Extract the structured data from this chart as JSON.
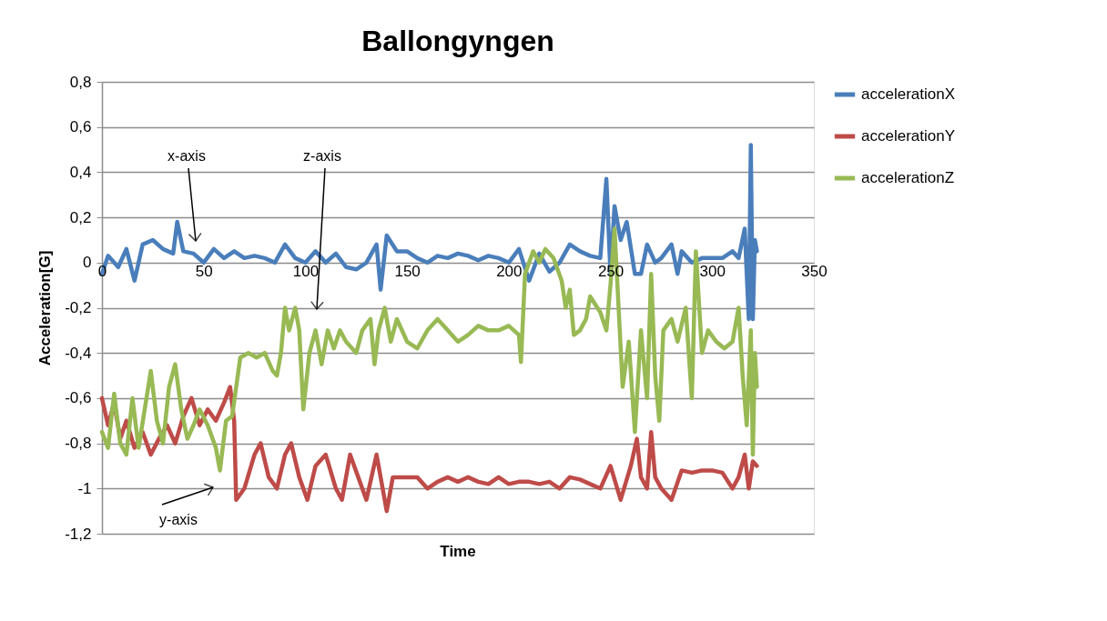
{
  "chart_data": {
    "type": "line",
    "title": "Ballongyngen",
    "xlabel": "Time",
    "ylabel": "Acceleration[G]",
    "xlim": [
      0,
      350
    ],
    "xticks": [
      0,
      50,
      100,
      150,
      200,
      250,
      300,
      350
    ],
    "ylim": [
      -1.2,
      0.8
    ],
    "yticks": [
      {
        "value": -1.2,
        "label": "-1,2"
      },
      {
        "value": -1,
        "label": "-1"
      },
      {
        "value": -0.8,
        "label": "-0,8"
      },
      {
        "value": -0.6,
        "label": "-0,6"
      },
      {
        "value": -0.4,
        "label": "-0,4"
      },
      {
        "value": -0.2,
        "label": "-0,2"
      },
      {
        "value": 0,
        "label": "0"
      },
      {
        "value": 0.2,
        "label": "0,2"
      },
      {
        "value": 0.4,
        "label": "0,4"
      },
      {
        "value": 0.6,
        "label": "0,6"
      },
      {
        "value": 0.8,
        "label": "0,8"
      }
    ],
    "grid": "y",
    "legend": "right",
    "marker": "none",
    "line_style": "solid",
    "annotations": [
      "x-axis",
      "z-axis",
      "y-axis"
    ],
    "series": [
      {
        "name": "accelerationX",
        "color": "#4a7ebb",
        "x": [
          0,
          3,
          8,
          12,
          16,
          20,
          25,
          30,
          35,
          37,
          40,
          45,
          50,
          55,
          60,
          65,
          70,
          75,
          80,
          85,
          90,
          95,
          100,
          105,
          110,
          115,
          120,
          125,
          130,
          135,
          137,
          140,
          145,
          150,
          155,
          160,
          165,
          170,
          175,
          180,
          185,
          190,
          195,
          200,
          205,
          210,
          215,
          220,
          225,
          230,
          235,
          240,
          245,
          248,
          250,
          252,
          255,
          258,
          262,
          265,
          268,
          272,
          275,
          280,
          283,
          285,
          290,
          295,
          300,
          305,
          310,
          313,
          316,
          318,
          319,
          320,
          321,
          322
        ],
        "values": [
          -0.05,
          0.03,
          -0.02,
          0.06,
          -0.08,
          0.08,
          0.1,
          0.06,
          0.04,
          0.18,
          0.05,
          0.04,
          0.0,
          0.06,
          0.02,
          0.05,
          0.02,
          0.03,
          0.02,
          0.0,
          0.08,
          0.02,
          0.0,
          0.05,
          0.0,
          0.04,
          -0.02,
          -0.03,
          0.0,
          0.08,
          -0.12,
          0.12,
          0.05,
          0.05,
          0.02,
          0.0,
          0.03,
          0.02,
          0.04,
          0.03,
          0.01,
          0.03,
          0.02,
          0.0,
          0.06,
          -0.08,
          0.04,
          -0.04,
          0.0,
          0.08,
          0.05,
          0.03,
          0.02,
          0.37,
          -0.05,
          0.25,
          0.1,
          0.18,
          -0.05,
          -0.05,
          0.08,
          0.0,
          0.02,
          0.08,
          -0.05,
          0.05,
          0.0,
          0.02,
          0.02,
          0.02,
          0.05,
          0.02,
          0.15,
          -0.25,
          0.52,
          -0.25,
          0.1,
          0.05
        ]
      },
      {
        "name": "accelerationY",
        "color": "#be4b48",
        "x": [
          0,
          3,
          6,
          9,
          12,
          16,
          20,
          24,
          28,
          32,
          36,
          40,
          44,
          48,
          52,
          56,
          60,
          63,
          65,
          66,
          70,
          75,
          78,
          82,
          86,
          90,
          93,
          97,
          101,
          105,
          110,
          115,
          118,
          122,
          126,
          130,
          135,
          140,
          143,
          148,
          155,
          160,
          165,
          170,
          175,
          180,
          185,
          190,
          195,
          200,
          205,
          210,
          215,
          220,
          225,
          230,
          235,
          240,
          245,
          250,
          255,
          260,
          263,
          265,
          268,
          270,
          272,
          275,
          280,
          285,
          290,
          295,
          300,
          305,
          310,
          313,
          316,
          318,
          320,
          322
        ],
        "values": [
          -0.6,
          -0.72,
          -0.62,
          -0.78,
          -0.7,
          -0.82,
          -0.75,
          -0.85,
          -0.78,
          -0.72,
          -0.8,
          -0.68,
          -0.6,
          -0.72,
          -0.65,
          -0.7,
          -0.62,
          -0.55,
          -0.7,
          -1.05,
          -1.0,
          -0.85,
          -0.8,
          -0.95,
          -1.0,
          -0.85,
          -0.8,
          -0.95,
          -1.05,
          -0.9,
          -0.85,
          -1.0,
          -1.05,
          -0.85,
          -0.95,
          -1.05,
          -0.85,
          -1.1,
          -0.95,
          -0.95,
          -0.95,
          -1.0,
          -0.97,
          -0.95,
          -0.97,
          -0.95,
          -0.97,
          -0.98,
          -0.95,
          -0.98,
          -0.97,
          -0.97,
          -0.98,
          -0.97,
          -1.0,
          -0.95,
          -0.96,
          -0.98,
          -1.0,
          -0.9,
          -1.05,
          -0.9,
          -0.78,
          -0.95,
          -1.0,
          -0.75,
          -0.95,
          -1.0,
          -1.05,
          -0.92,
          -0.93,
          -0.92,
          -0.92,
          -0.93,
          -1.0,
          -0.95,
          -0.85,
          -1.0,
          -0.88,
          -0.9
        ]
      },
      {
        "name": "accelerationZ",
        "color": "#98b954",
        "x": [
          0,
          3,
          6,
          9,
          12,
          15,
          18,
          21,
          24,
          27,
          30,
          33,
          36,
          39,
          42,
          45,
          48,
          52,
          56,
          58,
          61,
          64,
          66,
          68,
          72,
          76,
          80,
          84,
          86,
          88,
          90,
          92,
          95,
          97,
          99,
          102,
          105,
          108,
          111,
          114,
          117,
          120,
          125,
          128,
          132,
          134,
          136,
          139,
          142,
          145,
          150,
          155,
          160,
          165,
          170,
          175,
          180,
          185,
          190,
          195,
          200,
          205,
          206,
          208,
          212,
          215,
          218,
          222,
          226,
          228,
          230,
          232,
          235,
          238,
          240,
          245,
          248,
          250,
          252,
          254,
          256,
          259,
          262,
          265,
          268,
          270,
          272,
          274,
          276,
          280,
          283,
          287,
          290,
          292,
          295,
          298,
          302,
          306,
          310,
          313,
          315,
          317,
          319,
          320,
          321,
          322
        ],
        "values": [
          -0.75,
          -0.82,
          -0.58,
          -0.8,
          -0.85,
          -0.6,
          -0.82,
          -0.65,
          -0.48,
          -0.7,
          -0.8,
          -0.55,
          -0.45,
          -0.65,
          -0.78,
          -0.72,
          -0.65,
          -0.72,
          -0.82,
          -0.92,
          -0.7,
          -0.68,
          -0.55,
          -0.42,
          -0.4,
          -0.42,
          -0.4,
          -0.48,
          -0.5,
          -0.4,
          -0.2,
          -0.3,
          -0.2,
          -0.3,
          -0.65,
          -0.4,
          -0.3,
          -0.45,
          -0.3,
          -0.38,
          -0.3,
          -0.35,
          -0.4,
          -0.3,
          -0.25,
          -0.45,
          -0.3,
          -0.2,
          -0.35,
          -0.25,
          -0.35,
          -0.38,
          -0.3,
          -0.25,
          -0.3,
          -0.35,
          -0.32,
          -0.28,
          -0.3,
          -0.3,
          -0.28,
          -0.32,
          -0.44,
          -0.05,
          0.05,
          0.0,
          0.06,
          0.02,
          -0.08,
          -0.2,
          -0.12,
          -0.32,
          -0.3,
          -0.25,
          -0.15,
          -0.22,
          -0.3,
          -0.1,
          0.15,
          -0.2,
          -0.55,
          -0.35,
          -0.75,
          -0.3,
          -0.6,
          -0.05,
          -0.5,
          -0.7,
          -0.3,
          -0.25,
          -0.35,
          -0.2,
          -0.6,
          0.05,
          -0.4,
          -0.3,
          -0.35,
          -0.38,
          -0.35,
          -0.2,
          -0.5,
          -0.72,
          -0.3,
          -0.85,
          -0.4,
          -0.55
        ]
      }
    ]
  }
}
